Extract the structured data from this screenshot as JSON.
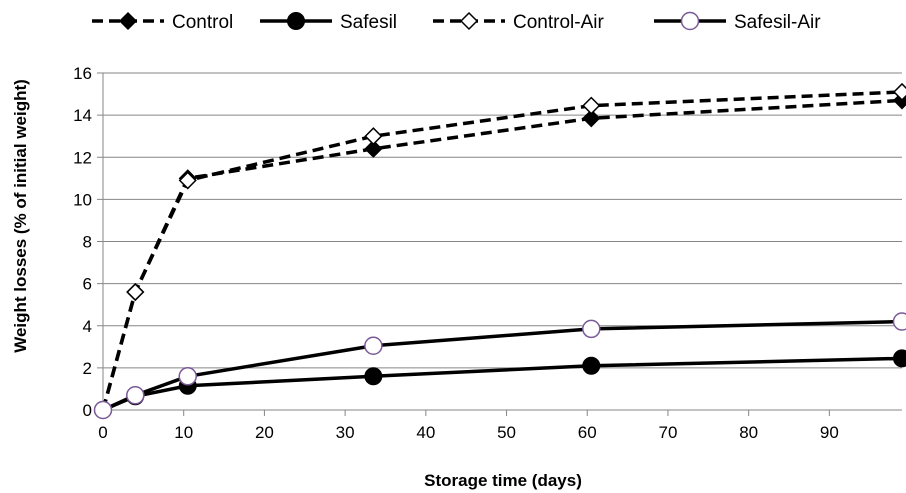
{
  "chart_data": {
    "type": "line",
    "title": "",
    "xlabel": "Storage time (days)",
    "ylabel": "Weight losses (% of initial weight)",
    "xlim": [
      0,
      99
    ],
    "ylim": [
      0,
      16
    ],
    "x_ticks": [
      0,
      10,
      20,
      30,
      40,
      50,
      60,
      70,
      80,
      90
    ],
    "y_ticks": [
      0,
      2,
      4,
      6,
      8,
      10,
      12,
      14,
      16
    ],
    "grid": "horizontal",
    "legend_position": "top",
    "series": [
      {
        "name": "Control",
        "style": "dashed",
        "marker": "diamond-filled",
        "color": "#000000",
        "x": [
          0,
          4,
          10.5,
          33.5,
          60.5,
          99
        ],
        "y": [
          0,
          5.6,
          11.0,
          12.4,
          13.85,
          14.7
        ]
      },
      {
        "name": "Safesil",
        "style": "solid",
        "marker": "circle-filled",
        "color": "#000000",
        "x": [
          0,
          4,
          10.5,
          33.5,
          60.5,
          99
        ],
        "y": [
          0,
          0.65,
          1.15,
          1.6,
          2.1,
          2.45
        ]
      },
      {
        "name": "Control-Air",
        "style": "dashed",
        "marker": "diamond-open",
        "color": "#000000",
        "x": [
          0,
          4,
          10.5,
          33.5,
          60.5,
          99
        ],
        "y": [
          0,
          5.6,
          10.9,
          13.0,
          14.45,
          15.1
        ]
      },
      {
        "name": "Safesil-Air",
        "style": "solid",
        "marker": "circle-open",
        "color": "#000000",
        "marker_color": "#7a5a98",
        "x": [
          0,
          4,
          10.5,
          33.5,
          60.5,
          99
        ],
        "y": [
          0,
          0.7,
          1.6,
          3.05,
          3.85,
          4.2
        ]
      }
    ]
  }
}
